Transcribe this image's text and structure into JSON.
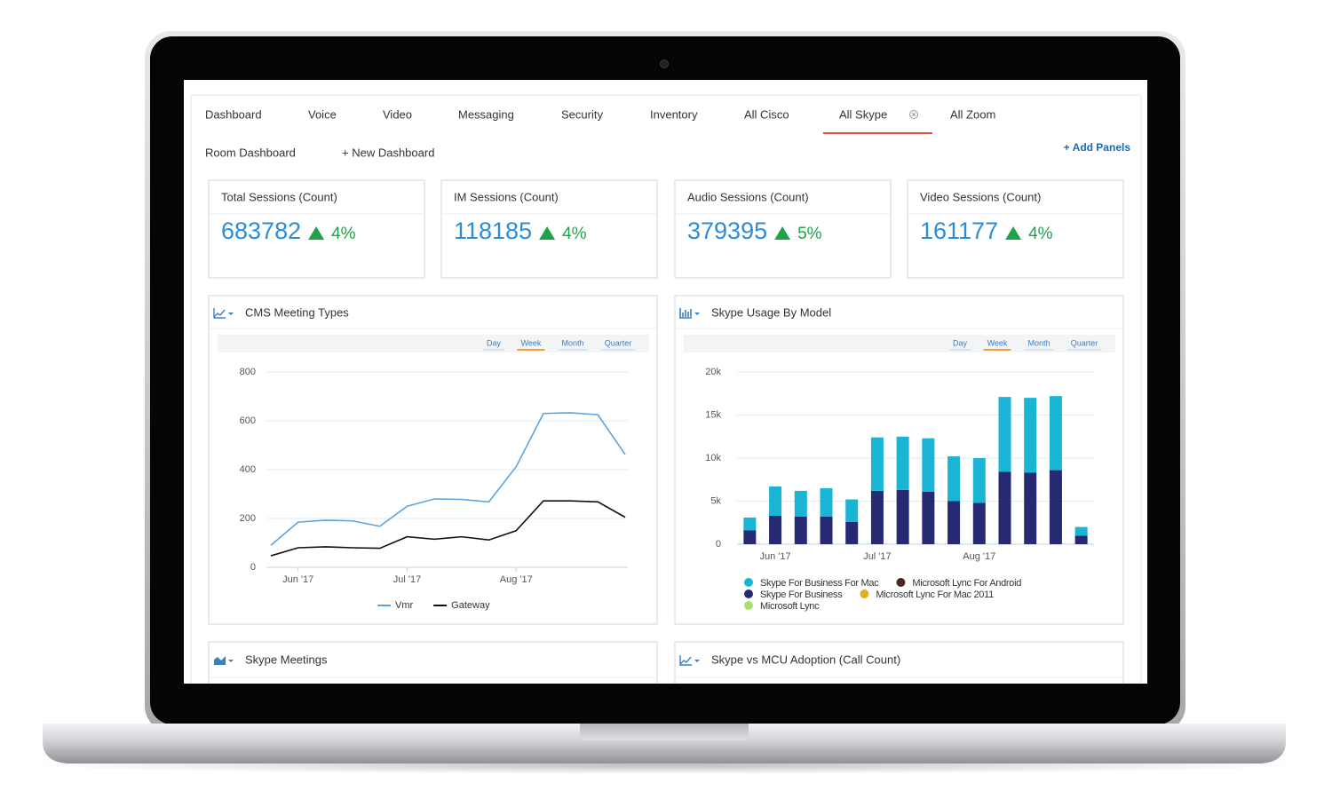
{
  "nav": [
    "Dashboard",
    "Voice",
    "Video",
    "Messaging",
    "Security",
    "Inventory",
    "All Cisco",
    "All Skype",
    "All Zoom"
  ],
  "active_tab_index": 7,
  "sub_nav": [
    "Room Dashboard",
    "+ New Dashboard"
  ],
  "add_panels": "+ Add Panels",
  "kpis": [
    {
      "title": "Total Sessions (Count)",
      "value": 683782,
      "change": "4%"
    },
    {
      "title": "IM Sessions (Count)",
      "value": 118185,
      "change": "4%"
    },
    {
      "title": "Audio Sessions (Count)",
      "value": 379395,
      "change": "5%"
    },
    {
      "title": "Video Sessions (Count)",
      "value": 161177,
      "change": "4%"
    }
  ],
  "chart_data": [
    {
      "type": "line",
      "title": "CMS Meeting Types",
      "range_options": [
        "Day",
        "Week",
        "Month",
        "Quarter"
      ],
      "selected_range_index": 1,
      "categories": [
        null,
        "Jun '17",
        null,
        null,
        null,
        "Jul '17",
        null,
        null,
        null,
        "Aug '17",
        null,
        null,
        null,
        null
      ],
      "series": [
        {
          "name": "Vmr",
          "color": "#5aa5e0",
          "values": [
            90,
            185,
            193,
            190,
            168,
            250,
            280,
            278,
            268,
            412,
            630,
            633,
            625,
            462
          ]
        },
        {
          "name": "Gateway",
          "color": "#111111",
          "values": [
            47,
            80,
            84,
            80,
            78,
            125,
            115,
            125,
            112,
            150,
            272,
            272,
            268,
            205
          ]
        }
      ],
      "ylim": [
        0,
        800
      ],
      "yticks": [
        0,
        200,
        400,
        600,
        800
      ],
      "grid": true
    },
    {
      "type": "bar",
      "stacked": true,
      "title": "Skype Usage By Model",
      "range_options": [
        "Day",
        "Week",
        "Month",
        "Quarter"
      ],
      "selected_range_index": 1,
      "categories": [
        null,
        "Jun '17",
        null,
        null,
        null,
        "Jul '17",
        null,
        null,
        null,
        "Aug '17",
        null,
        null,
        null,
        null
      ],
      "series": [
        {
          "name": "Skype For Business For Mac",
          "color": "#1ab4d4",
          "values": [
            1500,
            3400,
            3000,
            3300,
            2600,
            6200,
            6200,
            6200,
            5200,
            5200,
            8700,
            8700,
            8600,
            1000
          ]
        },
        {
          "name": "Microsoft Lync For Android",
          "color": "#4a2a20",
          "values": [
            0,
            0,
            0,
            0,
            0,
            0,
            0,
            0,
            0,
            0,
            0,
            0,
            0,
            0
          ]
        },
        {
          "name": "Skype For Business",
          "color": "#252a72",
          "values": [
            1600,
            3300,
            3200,
            3200,
            2600,
            6200,
            6300,
            6100,
            5000,
            4800,
            8400,
            8300,
            8600,
            1000
          ]
        },
        {
          "name": "Microsoft Lync For Mac 2011",
          "color": "#e0b020",
          "values": [
            0,
            0,
            0,
            0,
            0,
            0,
            0,
            0,
            0,
            0,
            0,
            0,
            0,
            0
          ]
        },
        {
          "name": "Microsoft Lync",
          "color": "#a8e070",
          "values": [
            0,
            0,
            0,
            0,
            0,
            0,
            0,
            0,
            0,
            0,
            0,
            0,
            0,
            0
          ]
        }
      ],
      "ylim": [
        0,
        20000
      ],
      "yticks": [
        0,
        {
          "value": 5000,
          "label": "5k"
        },
        {
          "value": 10000,
          "label": "10k"
        },
        {
          "value": 15000,
          "label": "15k"
        },
        {
          "value": 20000,
          "label": "20k"
        }
      ],
      "grid": true
    }
  ],
  "bottom_panels": [
    {
      "title": "Skype Meetings"
    },
    {
      "title": "Skype vs MCU Adoption (Call Count)"
    }
  ]
}
